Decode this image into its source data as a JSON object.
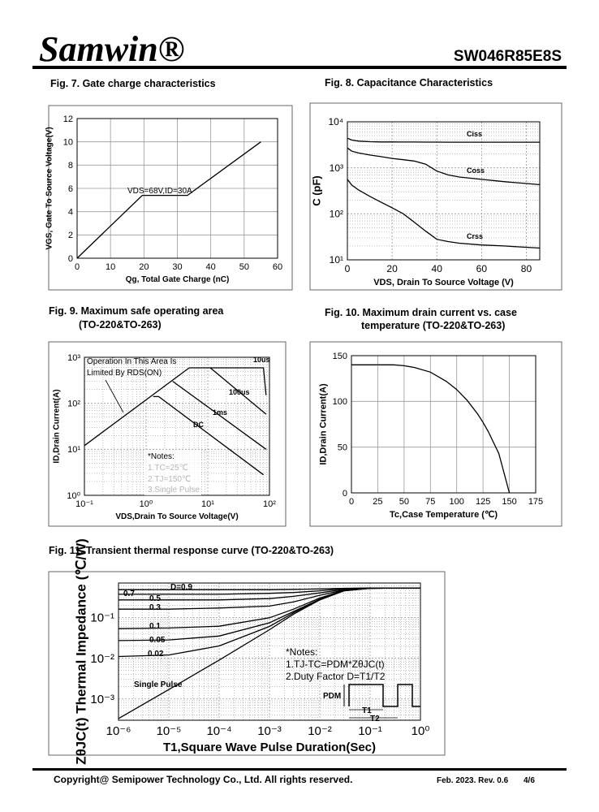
{
  "header": {
    "brand": "Samwin®",
    "part": "SW046R85E8S"
  },
  "chart_data": [
    {
      "type": "line",
      "title": "Fig. 7. Gate charge characteristics",
      "xlabel": "Qg, Total Gate Charge (nC)",
      "ylabel": "VGS, Gate To Source Voltage(V)",
      "x": [
        0,
        19.5,
        33,
        55
      ],
      "series": [
        {
          "values": [
            0,
            5.4,
            5.4,
            10
          ]
        }
      ],
      "color": "#000000",
      "xlim": [
        0,
        60
      ],
      "xticks": [
        0,
        10,
        20,
        30,
        40,
        50,
        60
      ],
      "ylim": [
        0,
        12
      ],
      "yticks": [
        0,
        2,
        4,
        6,
        8,
        10,
        12
      ],
      "grid": true,
      "annotations": [
        "VDS=68V,ID=30A"
      ]
    },
    {
      "type": "line",
      "title": "Fig. 8. Capacitance Characteristics",
      "xlabel": "VDS, Drain To Source Voltage (V)",
      "ylabel": "C (pF)",
      "x": [
        0,
        2,
        5,
        10,
        15,
        20,
        25,
        30,
        35,
        40,
        45,
        50,
        60,
        70,
        86
      ],
      "series": [
        {
          "name": "Ciss",
          "values": [
            4400,
            4000,
            3800,
            3700,
            3650,
            3650,
            3640,
            3630,
            3620,
            3620,
            3610,
            3600,
            3600,
            3600,
            3600
          ]
        },
        {
          "name": "Coss",
          "values": [
            2700,
            2300,
            2100,
            1900,
            1750,
            1600,
            1500,
            1400,
            1200,
            850,
            700,
            630,
            560,
            500,
            430
          ]
        },
        {
          "name": "Crss",
          "values": [
            560,
            420,
            330,
            240,
            180,
            135,
            100,
            65,
            42,
            28,
            25,
            23,
            21,
            20,
            18
          ]
        }
      ],
      "color": "#000000",
      "ylog": true,
      "xlim": [
        0,
        86
      ],
      "xticks": [
        0,
        20,
        40,
        60,
        80
      ],
      "ylim": [
        10,
        10000
      ],
      "yticks": [
        {
          "value": 10,
          "label": "10¹"
        },
        {
          "value": 100,
          "label": "10²"
        },
        {
          "value": 1000,
          "label": "10³"
        },
        {
          "value": 10000,
          "label": "10⁴"
        }
      ],
      "grid": true,
      "minor_grid": true
    },
    {
      "type": "line",
      "title": "Fig. 9. Maximum safe operating area",
      "subtitle": "(TO-220&TO-263)",
      "xlabel": "VDS,Drain To Source Voltage(V)",
      "ylabel": "ID,Drain Current(A)",
      "series": [
        {
          "x": [
            0.1,
            5
          ],
          "values": [
            12,
            590
          ]
        },
        {
          "name": "10us",
          "x": [
            5,
            80,
            88
          ],
          "values": [
            590,
            590,
            150
          ]
        },
        {
          "name": "100us",
          "x": [
            11,
            88
          ],
          "values": [
            590,
            58
          ]
        },
        {
          "name": "1ms",
          "x": [
            2.7,
            88
          ],
          "values": [
            300,
            10
          ]
        },
        {
          "name": "DC",
          "x": [
            1.3,
            1.6,
            80
          ],
          "values": [
            140,
            140,
            2.8
          ]
        }
      ],
      "color": "#000000",
      "xlog": true,
      "ylog": true,
      "xlim": [
        0.1,
        100
      ],
      "xticks": [
        {
          "value": 0.1,
          "label": "10⁻¹"
        },
        {
          "value": 1,
          "label": "10⁰"
        },
        {
          "value": 10,
          "label": "10¹"
        },
        {
          "value": 100,
          "label": "10²"
        }
      ],
      "ylim": [
        1,
        1000
      ],
      "yticks": [
        {
          "value": 1,
          "label": "10⁰"
        },
        {
          "value": 10,
          "label": "10¹"
        },
        {
          "value": 100,
          "label": "10²"
        },
        {
          "value": 1000,
          "label": "10³"
        }
      ],
      "grid": true,
      "minor_grid": true,
      "annotations": [
        "Operation In This Area Is",
        "Limited By RDS(ON)",
        "*Notes:",
        "1.TC=25℃",
        "2.TJ=150℃",
        "3.Single Pulse"
      ]
    },
    {
      "type": "line",
      "title": "Fig. 10. Maximum drain current vs. case",
      "subtitle": "temperature (TO-220&TO-263)",
      "xlabel": "Tc,Case Temperature (℃)",
      "ylabel": "ID,Drain Current(A)",
      "x": [
        0,
        25,
        40,
        50,
        60,
        75,
        90,
        100,
        110,
        120,
        125,
        130,
        140,
        150
      ],
      "series": [
        {
          "values": [
            140,
            140,
            140,
            139,
            137,
            132,
            122,
            113,
            101,
            86,
            77,
            67,
            43,
            0
          ]
        }
      ],
      "color": "#000000",
      "xlim": [
        0,
        175
      ],
      "xticks": [
        0,
        25,
        50,
        75,
        100,
        125,
        150,
        175
      ],
      "ylim": [
        0,
        150
      ],
      "yticks": [
        0,
        50,
        100,
        150
      ],
      "grid": true
    },
    {
      "type": "line",
      "title": "Fig. 11. Transient thermal response curve (TO-220&TO-263)",
      "xlabel": "T1,Square Wave Pulse Duration(Sec)",
      "ylabel": "ZθJC(t) Thermal Impedance (℃/W)",
      "x": [
        1e-06,
        1e-05,
        0.0001,
        0.001,
        0.003,
        0.01,
        0.03,
        0.1,
        1
      ],
      "series": [
        {
          "name": "D=0.9",
          "values": [
            0.48,
            0.48,
            0.48,
            0.48,
            0.49,
            0.5,
            0.52,
            0.53,
            0.53
          ]
        },
        {
          "name": "0.7",
          "values": [
            0.37,
            0.37,
            0.37,
            0.39,
            0.41,
            0.45,
            0.51,
            0.53,
            0.53
          ]
        },
        {
          "name": "0.5",
          "values": [
            0.27,
            0.27,
            0.27,
            0.29,
            0.33,
            0.4,
            0.49,
            0.53,
            0.53
          ]
        },
        {
          "name": "0.3",
          "values": [
            0.16,
            0.16,
            0.17,
            0.19,
            0.24,
            0.35,
            0.47,
            0.52,
            0.53
          ]
        },
        {
          "name": "0.1",
          "values": [
            0.053,
            0.055,
            0.061,
            0.098,
            0.16,
            0.3,
            0.46,
            0.52,
            0.53
          ]
        },
        {
          "name": "0.05",
          "values": [
            0.027,
            0.028,
            0.035,
            0.074,
            0.14,
            0.28,
            0.45,
            0.52,
            0.53
          ]
        },
        {
          "name": "0.02",
          "values": [
            0.011,
            0.012,
            0.02,
            0.06,
            0.13,
            0.27,
            0.45,
            0.52,
            0.53
          ]
        },
        {
          "name": "Single Pulse",
          "values": [
            0.00033,
            0.0017,
            0.009,
            0.05,
            0.12,
            0.27,
            0.45,
            0.52,
            0.53
          ]
        }
      ],
      "color": "#000000",
      "xlog": true,
      "ylog": true,
      "xlim": [
        1e-06,
        1
      ],
      "xticks": [
        {
          "value": 1e-06,
          "label": "10⁻⁶"
        },
        {
          "value": 1e-05,
          "label": "10⁻⁵"
        },
        {
          "value": 0.0001,
          "label": "10⁻⁴"
        },
        {
          "value": 0.001,
          "label": "10⁻³"
        },
        {
          "value": 0.01,
          "label": "10⁻²"
        },
        {
          "value": 0.1,
          "label": "10⁻¹"
        },
        {
          "value": 1,
          "label": "10⁰"
        }
      ],
      "ylim": [
        0.0003,
        0.7
      ],
      "yticks": [
        {
          "value": 0.001,
          "label": "10⁻³"
        },
        {
          "value": 0.01,
          "label": "10⁻²"
        },
        {
          "value": 0.1,
          "label": "10⁻¹"
        }
      ],
      "grid": true,
      "minor_grid": true,
      "annotations": [
        "*Notes:",
        "1.TJ-TC=PDM*ZθJC(t)",
        "2.Duty Factor D=T1/T2",
        "PDM",
        "T1",
        "T2"
      ]
    }
  ],
  "footer": {
    "copyright": "Copyright@ Semipower Technology Co., Ltd. All rights reserved.",
    "revision": "Feb. 2023. Rev. 0.6",
    "page": "4/6"
  }
}
